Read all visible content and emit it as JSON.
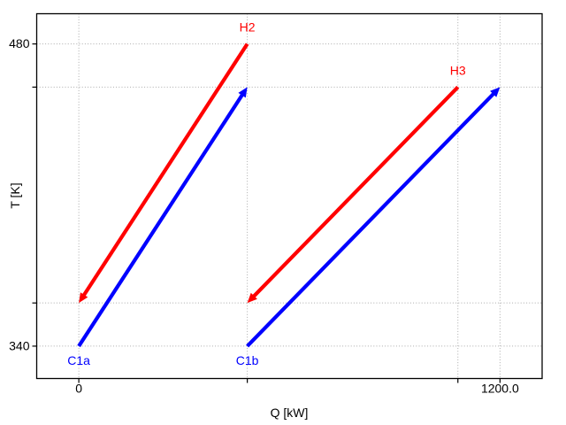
{
  "figure": {
    "background": "#ffffff",
    "grid_color": "#aaaaaa",
    "axis_color": "#000000",
    "hot_stream_color": "#ff0000",
    "cold_stream_color": "#0000ff"
  },
  "chart_data": {
    "type": "line",
    "title": "",
    "xlabel": "Q [kW]",
    "ylabel": "T [K]",
    "xlim": [
      -120,
      1320
    ],
    "ylim": [
      325,
      494
    ],
    "grid": true,
    "grid_style": "dotted",
    "x_ticks": [
      {
        "value": 0,
        "label": "0"
      },
      {
        "value": 480,
        "label": ""
      },
      {
        "value": 1080,
        "label": ""
      },
      {
        "value": 1200,
        "label": "1200.0"
      }
    ],
    "y_ticks": [
      {
        "value": 340,
        "label": "340"
      },
      {
        "value": 360,
        "label": ""
      },
      {
        "value": 460,
        "label": ""
      },
      {
        "value": 480,
        "label": "480"
      }
    ],
    "series": [
      {
        "name": "H2",
        "kind": "hot-stream",
        "color": "#ff0000",
        "points": [
          [
            0,
            360
          ],
          [
            480,
            480
          ]
        ],
        "arrow_end": "start",
        "label_pos": "end"
      },
      {
        "name": "C1a",
        "kind": "cold-stream",
        "color": "#0000ff",
        "points": [
          [
            0,
            340
          ],
          [
            480,
            460
          ]
        ],
        "arrow_end": "end",
        "label_pos": "start"
      },
      {
        "name": "H3",
        "kind": "hot-stream",
        "color": "#ff0000",
        "points": [
          [
            480,
            360
          ],
          [
            1080,
            460
          ]
        ],
        "arrow_end": "start",
        "label_pos": "end"
      },
      {
        "name": "C1b",
        "kind": "cold-stream",
        "color": "#0000ff",
        "points": [
          [
            480,
            340
          ],
          [
            1200,
            460
          ]
        ],
        "arrow_end": "end",
        "label_pos": "start"
      }
    ]
  }
}
